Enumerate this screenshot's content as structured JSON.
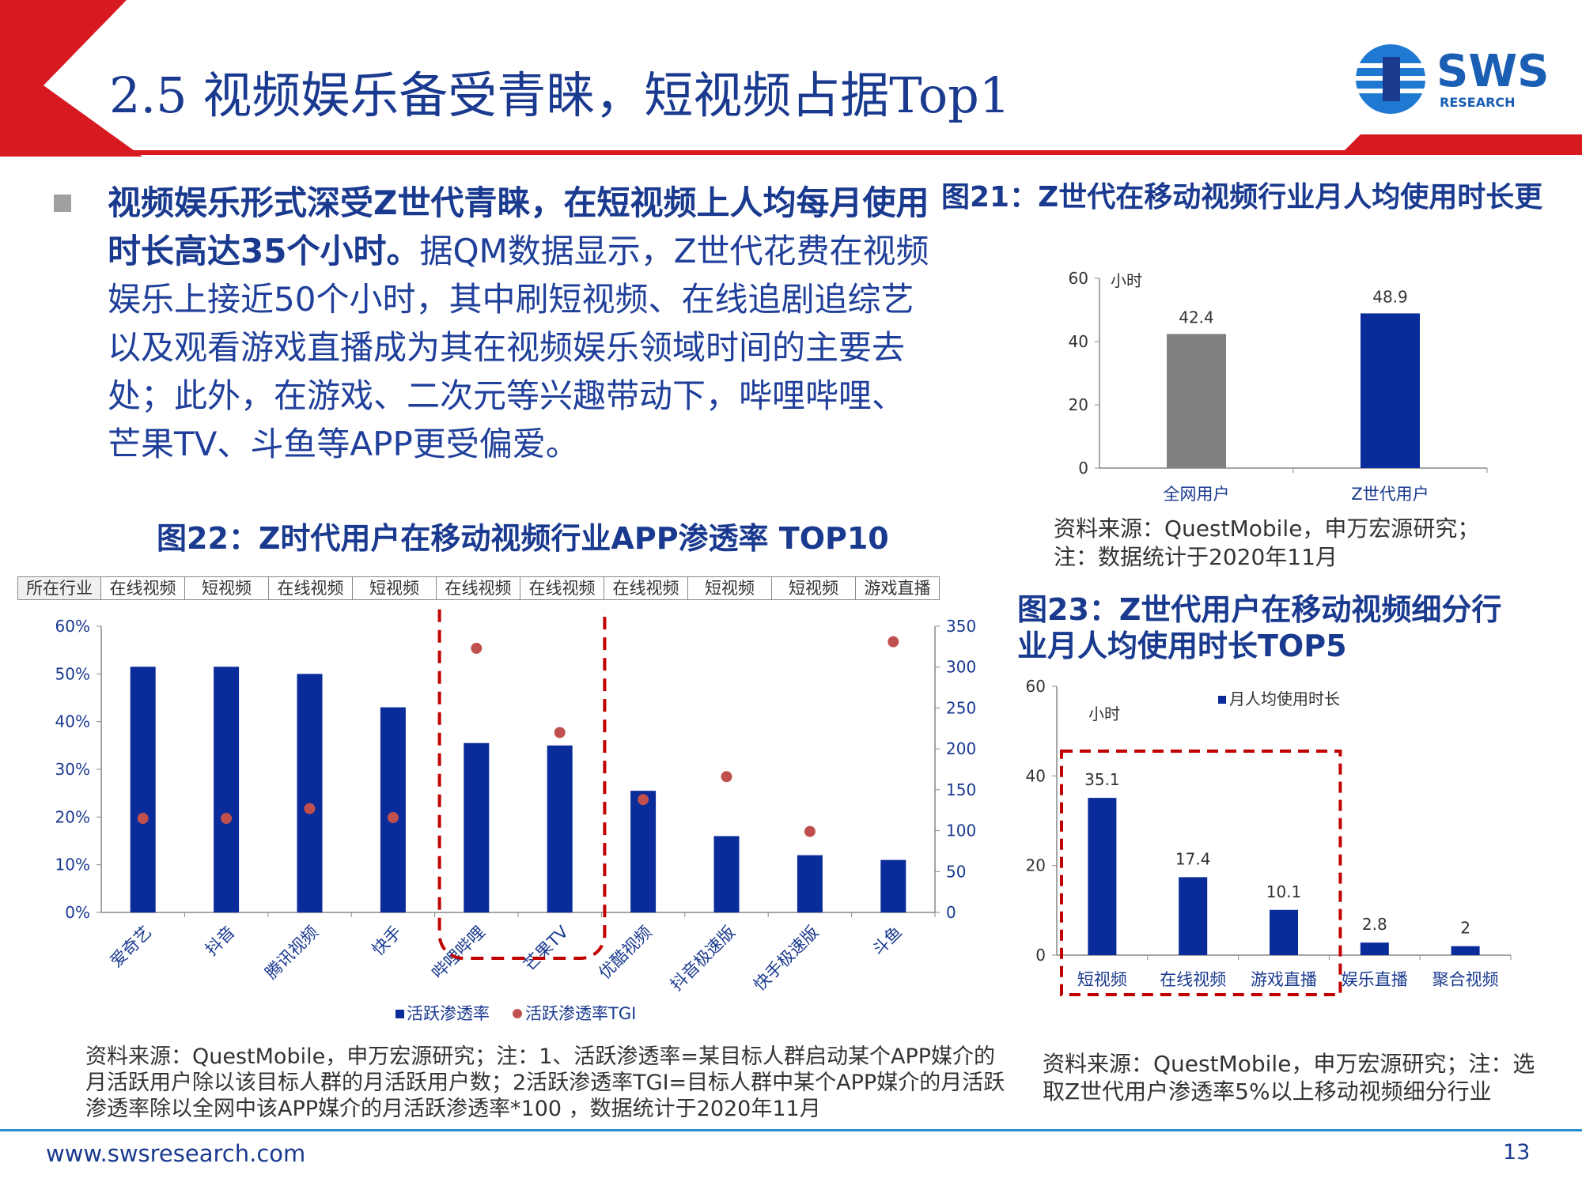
{
  "header": {
    "title": "2.5 视频娱乐备受青睐，短视频占据Top1",
    "logo_text": "SWS",
    "logo_sub": "RESEARCH",
    "accent_color": "#d71920",
    "brand_blue": "#1a3a8f"
  },
  "intro": {
    "bold_text": "视频娱乐形式深受Z世代青睐，在短视频上人均每月使用时长高达35个小时。",
    "body_text": "据QM数据显示，Z世代花费在视频娱乐上接近50个小时，其中刷短视频、在线追剧追综艺以及观看游戏直播成为其在视频娱乐领域时间的主要去处；此外，在游戏、二次元等兴趣带动下，哔哩哔哩、芒果TV、斗鱼等APP更受偏爱。"
  },
  "fig21": {
    "title": "图21：Z世代在移动视频行业月人均使用时长更",
    "source": "资料来源：QuestMobile，申万宏源研究；",
    "note": "注：数据统计于2020年11月"
  },
  "fig22": {
    "title": "图22：Z时代用户在移动视频行业APP渗透率 TOP10",
    "industry_header": "所在行业",
    "industries": [
      "在线视频",
      "短视频",
      "在线视频",
      "短视频",
      "在线视频",
      "在线视频",
      "在线视频",
      "短视频",
      "短视频",
      "游戏直播"
    ],
    "source": "资料来源：QuestMobile，申万宏源研究；注：1、活跃渗透率=某目标人群启动某个APP媒介的月活跃用户除以该目标人群的月活跃用户数；2活跃渗透率TGI=目标人群中某个APP媒介的月活跃渗透率除以全网中该APP媒介的月活跃渗透率*100 ，数据统计于2020年11月"
  },
  "fig23": {
    "title_line1": "图23：Z世代用户在移动视频细分行",
    "title_line2": "业月人均使用时长TOP5",
    "source": "资料来源：QuestMobile，申万宏源研究；注：选取Z世代用户渗透率5%以上移动视频细分行业"
  },
  "footer": {
    "url": "www.swsresearch.com",
    "page": "13"
  },
  "chart_data": [
    {
      "id": "fig21",
      "type": "bar",
      "categories": [
        "全网用户",
        "Z世代用户"
      ],
      "values": [
        42.4,
        48.9
      ],
      "colors": [
        "#808080",
        "#0a2b9a"
      ],
      "ylabel": "小时",
      "ylim": [
        0,
        60
      ],
      "yticks": [
        0,
        20,
        40,
        60
      ],
      "data_labels": [
        "42.4",
        "48.9"
      ]
    },
    {
      "id": "fig22",
      "type": "bar",
      "categories": [
        "爱奇艺",
        "抖音",
        "腾讯视频",
        "快手",
        "哔哩哔哩",
        "芒果TV",
        "优酷视频",
        "抖音极速版",
        "快手极速版",
        "斗鱼"
      ],
      "series": [
        {
          "name": "活跃渗透率",
          "type": "bar",
          "axis": "left",
          "color": "#0a2b9a",
          "values": [
            51.5,
            51.5,
            50.0,
            43.0,
            35.5,
            35.0,
            25.5,
            16.0,
            12.0,
            11.0
          ]
        },
        {
          "name": "活跃渗透率TGI",
          "type": "scatter",
          "axis": "right",
          "color": "#c0504d",
          "values": [
            115,
            115,
            127,
            116,
            323,
            220,
            138,
            166,
            99,
            331
          ]
        }
      ],
      "ylim_left": [
        0,
        60
      ],
      "yticks_left": [
        "0%",
        "10%",
        "20%",
        "30%",
        "40%",
        "50%",
        "60%"
      ],
      "ylim_right": [
        0,
        350
      ],
      "yticks_right": [
        "0",
        "50",
        "100",
        "150",
        "200",
        "250",
        "300",
        "350"
      ],
      "legend": "bottom"
    },
    {
      "id": "fig23",
      "type": "bar",
      "categories": [
        "短视频",
        "在线视频",
        "游戏直播",
        "娱乐直播",
        "聚合视频"
      ],
      "values": [
        35.1,
        17.4,
        10.1,
        2.8,
        2
      ],
      "data_labels": [
        "35.1",
        "17.4",
        "10.1",
        "2.8",
        "2"
      ],
      "color": "#0a2b9a",
      "ylabel": "小时",
      "legend_label": "月人均使用时长",
      "ylim": [
        0,
        60
      ],
      "yticks": [
        0,
        20,
        40,
        60
      ],
      "legend": "top"
    }
  ]
}
